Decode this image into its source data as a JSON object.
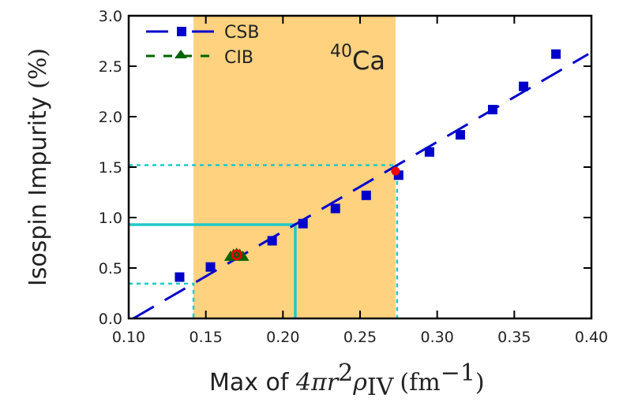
{
  "chart_data": {
    "type": "scatter",
    "title": "",
    "annotation": {
      "superscript": "40",
      "text": "Ca"
    },
    "xlabel": "Max of 4πr²ρ_IV (fm⁻¹)",
    "xlabel_parts": {
      "plain": "Max of ",
      "math": "4πr",
      "sup": "2",
      "rho": "ρ",
      "sub": "IV",
      "unit_open": "(fm",
      "unit_sup": "−1",
      "unit_close": ")"
    },
    "ylabel": "Isospin Impurity (%)",
    "ylabel_parts": {
      "plain": "Isospin Impurity ",
      "math": "(%)"
    },
    "xlim": [
      0.1,
      0.4
    ],
    "ylim": [
      0.0,
      3.0
    ],
    "xticks": [
      "0.10",
      "0.15",
      "0.20",
      "0.25",
      "0.30",
      "0.35",
      "0.40"
    ],
    "yticks": [
      "0.0",
      "0.5",
      "1.0",
      "1.5",
      "2.0",
      "2.5",
      "3.0"
    ],
    "grid": false,
    "legend_position": "upper left",
    "series": [
      {
        "name": "CSB",
        "color": "#0000CC",
        "marker": "square",
        "points": [
          [
            0.133,
            0.41
          ],
          [
            0.153,
            0.51
          ],
          [
            0.193,
            0.77
          ],
          [
            0.213,
            0.94
          ],
          [
            0.234,
            1.09
          ],
          [
            0.254,
            1.22
          ],
          [
            0.275,
            1.42
          ],
          [
            0.295,
            1.65
          ],
          [
            0.315,
            1.82
          ],
          [
            0.336,
            2.07
          ],
          [
            0.356,
            2.3
          ],
          [
            0.377,
            2.62
          ]
        ],
        "fit_line": {
          "style": "long-dash",
          "from": [
            0.103,
            0.0
          ],
          "to": [
            0.398,
            2.62
          ]
        }
      },
      {
        "name": "CIB",
        "color": "#006400",
        "marker": "triangle",
        "points": [
          [
            0.166,
            0.61
          ],
          [
            0.168,
            0.63
          ],
          [
            0.17,
            0.64
          ],
          [
            0.172,
            0.63
          ],
          [
            0.174,
            0.61
          ]
        ]
      }
    ],
    "highlight_points": [
      {
        "label": "red-open-circle",
        "color": "#EE0000",
        "x": 0.17,
        "y": 0.63
      },
      {
        "label": "red-dot",
        "color": "#EE0000",
        "x": 0.273,
        "y": 1.46
      }
    ],
    "shaded_band": {
      "x_from": 0.142,
      "x_to": 0.273,
      "color": "#FFD280"
    },
    "reference_lines": [
      {
        "style": "solid",
        "color": "#20C8C8",
        "x": 0.208,
        "y": 0.93
      },
      {
        "style": "dotted",
        "color": "#20C8C8",
        "x": 0.142,
        "y": 0.345
      },
      {
        "style": "dotted",
        "color": "#20C8C8",
        "x": 0.274,
        "y": 1.52
      }
    ]
  }
}
